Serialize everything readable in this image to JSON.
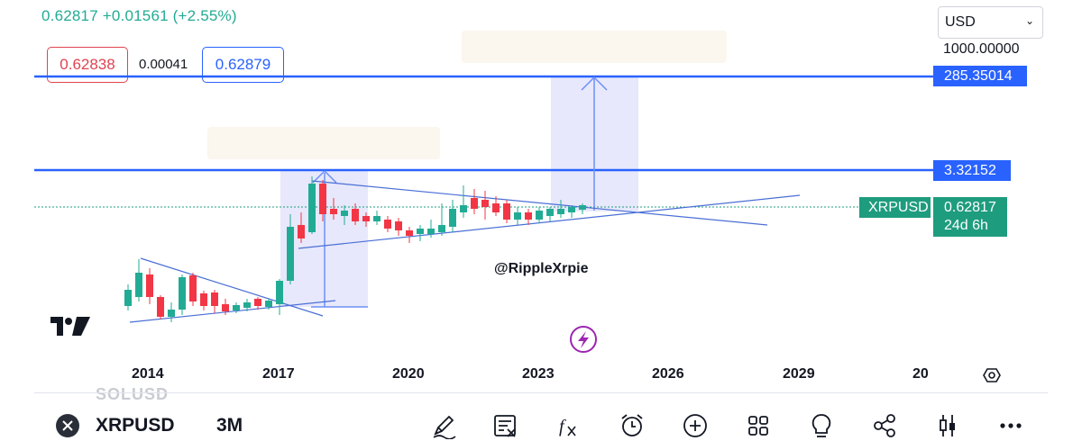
{
  "header": {
    "quote": "0.62817 +0.01561 (+2.55%)"
  },
  "order": {
    "sell_price": "0.62838",
    "spread": "0.00041",
    "buy_price": "0.62879"
  },
  "currency": {
    "selected": "USD"
  },
  "price_scale": {
    "top_label": "1000.00000"
  },
  "lines": {
    "upper_label": "285.35014",
    "lower_label": "3.32152"
  },
  "last_price": {
    "symbol": "XRPUSD",
    "value": "0.62817",
    "countdown": "24d 6h"
  },
  "watermark": "@RippleXrpie",
  "time_axis": {
    "labels": [
      "2014",
      "2017",
      "2020",
      "2023",
      "2026",
      "2029",
      "20"
    ]
  },
  "faded_symbol": "SOLUSD",
  "bottom_bar": {
    "symbol": "XRPUSD",
    "interval": "3M"
  },
  "icons": [
    "tradingview-logo-icon",
    "lightning-icon",
    "settings-icon",
    "close-icon",
    "draw-icon",
    "news-icon",
    "indicators-icon",
    "alert-icon",
    "add-icon",
    "layouts-icon",
    "ideas-icon",
    "share-icon",
    "candle-type-icon",
    "more-icon"
  ],
  "colors": {
    "up": "#22ab94",
    "down": "#f23645",
    "line": "#2962ff",
    "accent": "#9c27b0"
  }
}
